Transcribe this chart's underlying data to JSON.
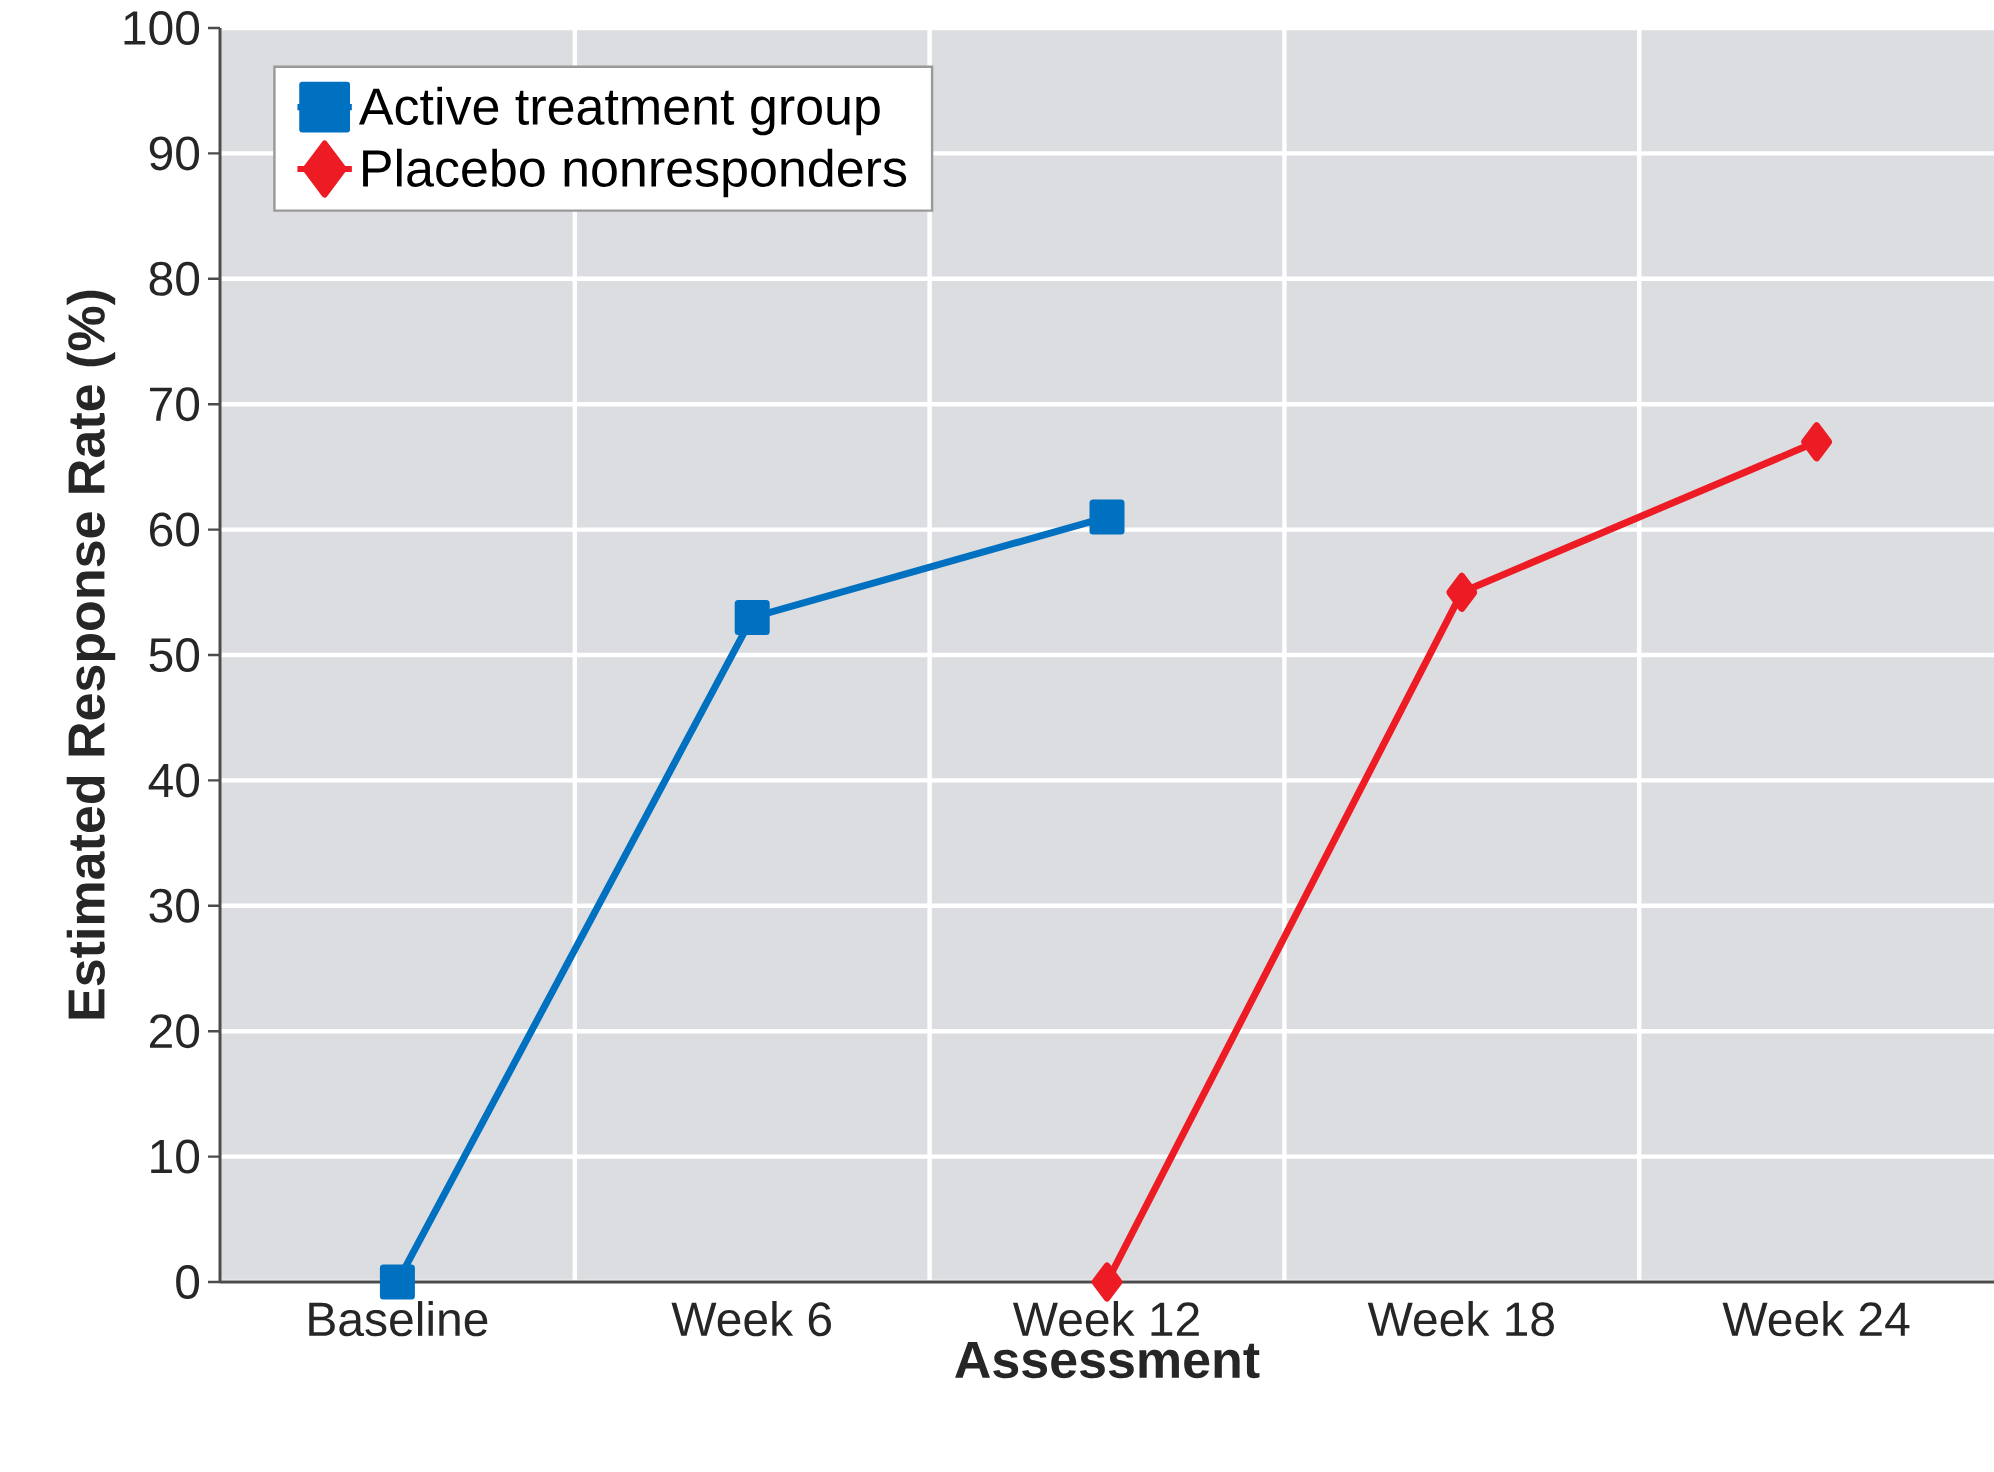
{
  "chart_data": {
    "type": "line",
    "xlabel": "Assessment",
    "ylabel": "Estimated Response Rate (%)",
    "categories": [
      "Baseline",
      "Week 6",
      "Week 12",
      "Week 18",
      "Week 24"
    ],
    "series": [
      {
        "name": "Active treatment group",
        "color": "#0070c0",
        "marker": "square",
        "values": [
          0,
          53,
          61,
          null,
          null
        ]
      },
      {
        "name": "Placebo nonresponders",
        "color": "#ed1c24",
        "marker": "diamond",
        "values": [
          null,
          null,
          0,
          55,
          67
        ]
      }
    ],
    "ylim": [
      0,
      100
    ],
    "yticks": [
      0,
      10,
      20,
      30,
      40,
      50,
      60,
      70,
      80,
      90,
      100
    ],
    "grid": true,
    "legend": "top left"
  }
}
